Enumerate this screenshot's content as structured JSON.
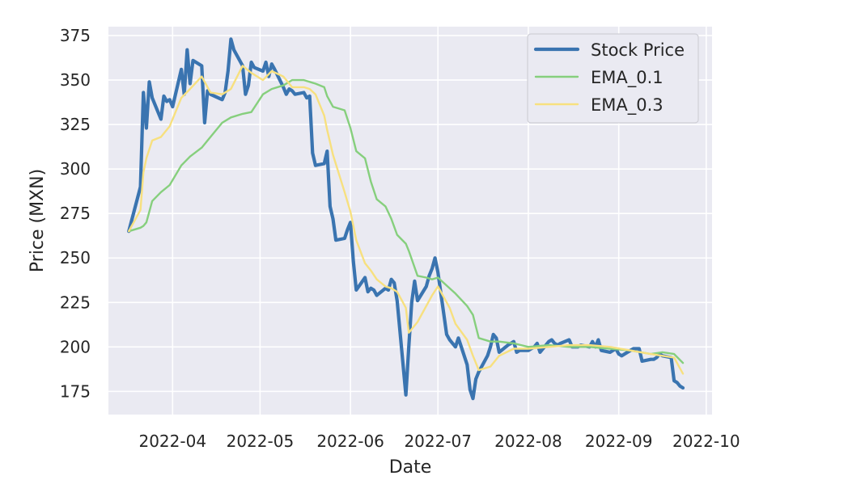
{
  "chart_data": {
    "type": "line",
    "xlabel": "Date",
    "ylabel": "Price (MXN)",
    "x_type": "date",
    "x_ticks": [
      "2022-04",
      "2022-05",
      "2022-06",
      "2022-07",
      "2022-08",
      "2022-09",
      "2022-10"
    ],
    "x_tick_dates": [
      "2022-04-01",
      "2022-05-01",
      "2022-06-01",
      "2022-07-01",
      "2022-08-01",
      "2022-09-01",
      "2022-10-01"
    ],
    "y_ticks": [
      175,
      200,
      225,
      250,
      275,
      300,
      325,
      350,
      375
    ],
    "xlim": [
      "2022-03-10",
      "2022-10-03"
    ],
    "ylim": [
      162,
      380
    ],
    "grid": true,
    "legend_position": "top-right",
    "colors": {
      "background": "#eaeaf2",
      "grid": "#ffffff"
    },
    "series": [
      {
        "name": "Stock Price",
        "color": "#3a74b0",
        "x": [
          "2022-03-17",
          "2022-03-21",
          "2022-03-22",
          "2022-03-23",
          "2022-03-24",
          "2022-03-25",
          "2022-03-28",
          "2022-03-29",
          "2022-03-30",
          "2022-03-31",
          "2022-04-01",
          "2022-04-04",
          "2022-04-05",
          "2022-04-06",
          "2022-04-07",
          "2022-04-08",
          "2022-04-11",
          "2022-04-12",
          "2022-04-13",
          "2022-04-14",
          "2022-04-18",
          "2022-04-19",
          "2022-04-20",
          "2022-04-21",
          "2022-04-22",
          "2022-04-25",
          "2022-04-26",
          "2022-04-27",
          "2022-04-28",
          "2022-04-29",
          "2022-05-02",
          "2022-05-03",
          "2022-05-04",
          "2022-05-05",
          "2022-05-06",
          "2022-05-09",
          "2022-05-10",
          "2022-05-11",
          "2022-05-12",
          "2022-05-13",
          "2022-05-16",
          "2022-05-17",
          "2022-05-18",
          "2022-05-19",
          "2022-05-20",
          "2022-05-23",
          "2022-05-24",
          "2022-05-25",
          "2022-05-26",
          "2022-05-27",
          "2022-05-30",
          "2022-05-31",
          "2022-06-01",
          "2022-06-02",
          "2022-06-03",
          "2022-06-06",
          "2022-06-07",
          "2022-06-08",
          "2022-06-09",
          "2022-06-10",
          "2022-06-13",
          "2022-06-14",
          "2022-06-15",
          "2022-06-16",
          "2022-06-17",
          "2022-06-20",
          "2022-06-21",
          "2022-06-22",
          "2022-06-23",
          "2022-06-24",
          "2022-06-27",
          "2022-06-28",
          "2022-06-29",
          "2022-06-30",
          "2022-07-01",
          "2022-07-04",
          "2022-07-05",
          "2022-07-06",
          "2022-07-07",
          "2022-07-08",
          "2022-07-11",
          "2022-07-12",
          "2022-07-13",
          "2022-07-14",
          "2022-07-15",
          "2022-07-18",
          "2022-07-19",
          "2022-07-20",
          "2022-07-21",
          "2022-07-22",
          "2022-07-25",
          "2022-07-26",
          "2022-07-27",
          "2022-07-28",
          "2022-07-29",
          "2022-08-01",
          "2022-08-02",
          "2022-08-03",
          "2022-08-04",
          "2022-08-05",
          "2022-08-08",
          "2022-08-09",
          "2022-08-10",
          "2022-08-11",
          "2022-08-12",
          "2022-08-15",
          "2022-08-16",
          "2022-08-17",
          "2022-08-18",
          "2022-08-19",
          "2022-08-22",
          "2022-08-23",
          "2022-08-24",
          "2022-08-25",
          "2022-08-26",
          "2022-08-29",
          "2022-08-30",
          "2022-08-31",
          "2022-09-01",
          "2022-09-02",
          "2022-09-05",
          "2022-09-06",
          "2022-09-07",
          "2022-09-08",
          "2022-09-09",
          "2022-09-12",
          "2022-09-13",
          "2022-09-14",
          "2022-09-15",
          "2022-09-16",
          "2022-09-19",
          "2022-09-20",
          "2022-09-21",
          "2022-09-22",
          "2022-09-23"
        ],
        "y": [
          265,
          290,
          343,
          323,
          349,
          340,
          328,
          341,
          338,
          339,
          335,
          356,
          342,
          367,
          348,
          361,
          358,
          326,
          344,
          342,
          339,
          343,
          355,
          373,
          367,
          358,
          342,
          347,
          360,
          357,
          355,
          360,
          352,
          359,
          356,
          346,
          342,
          345,
          344,
          342,
          343,
          340,
          341,
          309,
          302,
          303,
          310,
          279,
          272,
          260,
          261,
          266,
          270,
          248,
          232,
          239,
          231,
          233,
          232,
          229,
          233,
          232,
          238,
          236,
          226,
          173,
          200,
          225,
          237,
          226,
          234,
          240,
          244,
          250,
          242,
          207,
          204,
          202,
          200,
          205,
          190,
          176,
          171,
          182,
          186,
          195,
          200,
          207,
          205,
          197,
          201,
          202,
          203,
          197,
          198,
          198,
          199,
          200,
          202,
          197,
          203,
          204,
          202,
          201,
          202,
          204,
          200,
          200,
          200,
          201,
          200,
          203,
          200,
          204,
          198,
          197,
          198,
          199,
          196,
          195,
          198,
          199,
          199,
          199,
          192,
          193,
          193,
          194,
          196,
          195,
          194,
          181,
          180,
          178,
          177
        ]
      },
      {
        "name": "EMA_0.1",
        "color": "#86cf7d",
        "x": [
          "2022-03-17",
          "2022-03-21",
          "2022-03-22",
          "2022-03-23",
          "2022-03-25",
          "2022-03-28",
          "2022-03-31",
          "2022-04-04",
          "2022-04-07",
          "2022-04-11",
          "2022-04-14",
          "2022-04-18",
          "2022-04-21",
          "2022-04-25",
          "2022-04-28",
          "2022-05-02",
          "2022-05-05",
          "2022-05-09",
          "2022-05-12",
          "2022-05-16",
          "2022-05-18",
          "2022-05-20",
          "2022-05-23",
          "2022-05-24",
          "2022-05-26",
          "2022-05-30",
          "2022-06-01",
          "2022-06-03",
          "2022-06-06",
          "2022-06-08",
          "2022-06-10",
          "2022-06-13",
          "2022-06-15",
          "2022-06-17",
          "2022-06-20",
          "2022-06-21",
          "2022-06-24",
          "2022-06-27",
          "2022-06-29",
          "2022-07-01",
          "2022-07-05",
          "2022-07-07",
          "2022-07-11",
          "2022-07-13",
          "2022-07-15",
          "2022-07-19",
          "2022-07-22",
          "2022-07-27",
          "2022-08-01",
          "2022-08-08",
          "2022-08-15",
          "2022-08-22",
          "2022-08-29",
          "2022-09-05",
          "2022-09-12",
          "2022-09-16",
          "2022-09-20",
          "2022-09-23"
        ],
        "y": [
          265,
          267,
          268,
          270,
          282,
          287,
          291,
          302,
          307,
          312,
          318,
          326,
          329,
          331,
          332,
          342,
          345,
          347,
          350,
          350,
          349,
          348,
          346,
          341,
          335,
          333,
          323,
          310,
          306,
          293,
          283,
          279,
          272,
          263,
          258,
          254,
          240,
          239,
          238,
          239,
          233,
          230,
          223,
          218,
          205,
          203,
          203,
          202,
          200,
          201,
          200,
          200,
          199,
          198,
          196,
          197,
          196,
          191
        ]
      },
      {
        "name": "EMA_0.3",
        "color": "#f7e07f",
        "x": [
          "2022-03-17",
          "2022-03-21",
          "2022-03-22",
          "2022-03-23",
          "2022-03-25",
          "2022-03-28",
          "2022-03-31",
          "2022-04-04",
          "2022-04-07",
          "2022-04-11",
          "2022-04-14",
          "2022-04-18",
          "2022-04-21",
          "2022-04-25",
          "2022-04-28",
          "2022-05-02",
          "2022-05-05",
          "2022-05-09",
          "2022-05-12",
          "2022-05-16",
          "2022-05-18",
          "2022-05-20",
          "2022-05-23",
          "2022-05-24",
          "2022-05-26",
          "2022-05-30",
          "2022-06-01",
          "2022-06-03",
          "2022-06-06",
          "2022-06-08",
          "2022-06-10",
          "2022-06-13",
          "2022-06-15",
          "2022-06-17",
          "2022-06-20",
          "2022-06-21",
          "2022-06-24",
          "2022-06-27",
          "2022-06-29",
          "2022-07-01",
          "2022-07-05",
          "2022-07-07",
          "2022-07-11",
          "2022-07-13",
          "2022-07-15",
          "2022-07-19",
          "2022-07-22",
          "2022-07-27",
          "2022-08-01",
          "2022-08-08",
          "2022-08-15",
          "2022-08-22",
          "2022-08-29",
          "2022-09-05",
          "2022-09-12",
          "2022-09-16",
          "2022-09-20",
          "2022-09-23"
        ],
        "y": [
          265,
          277,
          298,
          306,
          316,
          318,
          324,
          340,
          345,
          352,
          343,
          342,
          345,
          358,
          354,
          350,
          355,
          352,
          346,
          346,
          345,
          342,
          330,
          322,
          308,
          287,
          276,
          260,
          247,
          243,
          238,
          234,
          233,
          231,
          222,
          208,
          214,
          223,
          229,
          234,
          222,
          213,
          204,
          195,
          187,
          189,
          195,
          199,
          199,
          200,
          201,
          201,
          200,
          198,
          196,
          195,
          194,
          185
        ]
      }
    ]
  }
}
